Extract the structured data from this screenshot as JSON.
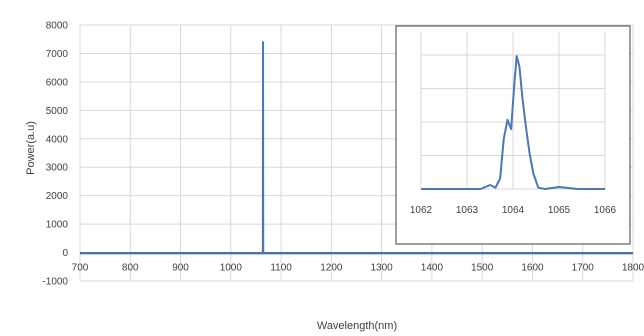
{
  "chart_data": [
    {
      "type": "line",
      "xlabel": "Wavelength(nm)",
      "ylabel": "Power(a.u)",
      "xlim": [
        700,
        1800
      ],
      "ylim": [
        -1000,
        8000
      ],
      "x_ticks": [
        "700",
        "800",
        "900",
        "1000",
        "1100",
        "1200",
        "1300",
        "1400",
        "1500",
        "1600",
        "1700",
        "1800"
      ],
      "y_ticks": [
        "-1000",
        "0",
        "1000",
        "2000",
        "3000",
        "4000",
        "5000",
        "6000",
        "7000",
        "8000"
      ],
      "grid": true,
      "line_color": "#4a78b5",
      "series": [
        {
          "x": [
            700,
            1062,
            1063.4,
            1063.6,
            1063.8,
            1063.9,
            1064.0,
            1064.1,
            1064.2,
            1064.3,
            1064.5,
            1064.6,
            1066,
            1800
          ],
          "y": [
            -30,
            -30,
            -30,
            0,
            300,
            4600,
            4300,
            7400,
            5200,
            2600,
            200,
            -30,
            -30,
            -30
          ]
        }
      ]
    },
    {
      "type": "line",
      "xlim": [
        1062,
        1066
      ],
      "x_ticks": [
        "1062",
        "1063",
        "1064",
        "1065",
        "1066"
      ],
      "grid": true,
      "line_color": "#4a78b5",
      "series": [
        {
          "x": [
            1062.0,
            1063.0,
            1063.3,
            1063.5,
            1063.62,
            1063.72,
            1063.8,
            1063.88,
            1063.96,
            1064.02,
            1064.08,
            1064.14,
            1064.2,
            1064.28,
            1064.36,
            1064.44,
            1064.55,
            1064.7,
            1065.0,
            1065.4,
            1066.0
          ],
          "y": [
            0,
            0,
            0,
            0.03,
            0.01,
            0.08,
            0.38,
            0.52,
            0.45,
            0.75,
            1.0,
            0.92,
            0.7,
            0.47,
            0.27,
            0.12,
            0.01,
            0.0,
            0.015,
            0.0,
            0.0
          ]
        }
      ]
    }
  ]
}
